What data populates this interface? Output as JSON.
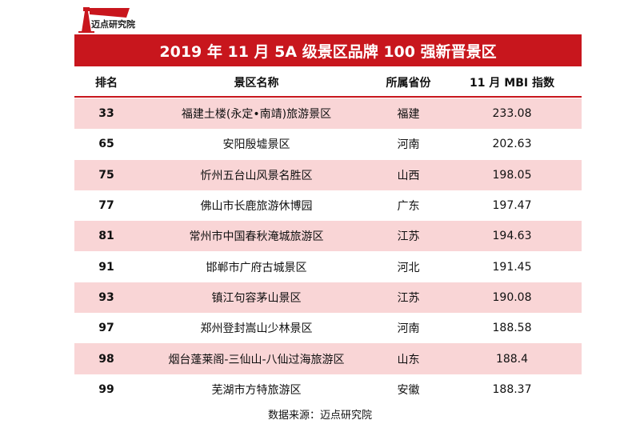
{
  "logo": {
    "text": "迈点研究院"
  },
  "title": "2019 年 11 月 5A 级景区品牌 100 强新晋景区",
  "table": {
    "columns": [
      "排名",
      "景区名称",
      "所属省份",
      "11 月 MBI 指数"
    ],
    "rows": [
      [
        33,
        "福建土楼(永定•南靖)旅游景区",
        "福建",
        233.08
      ],
      [
        65,
        "安阳殷墟景区",
        "河南",
        202.63
      ],
      [
        75,
        "忻州五台山风景名胜区",
        "山西",
        198.05
      ],
      [
        77,
        "佛山市长鹿旅游休博园",
        "广东",
        197.47
      ],
      [
        81,
        "常州市中国春秋淹城旅游区",
        "江苏",
        194.63
      ],
      [
        91,
        "邯郸市广府古城景区",
        "河北",
        191.45
      ],
      [
        93,
        "镇江句容茅山景区",
        "江苏",
        190.08
      ],
      [
        97,
        "郑州登封嵩山少林景区",
        "河南",
        188.58
      ],
      [
        98,
        "烟台蓬莱阁-三仙山-八仙过海旅游区",
        "山东",
        188.4
      ],
      [
        99,
        "芜湖市方特旅游区",
        "安徽",
        188.37
      ]
    ]
  },
  "source": "数据来源：迈点研究院"
}
